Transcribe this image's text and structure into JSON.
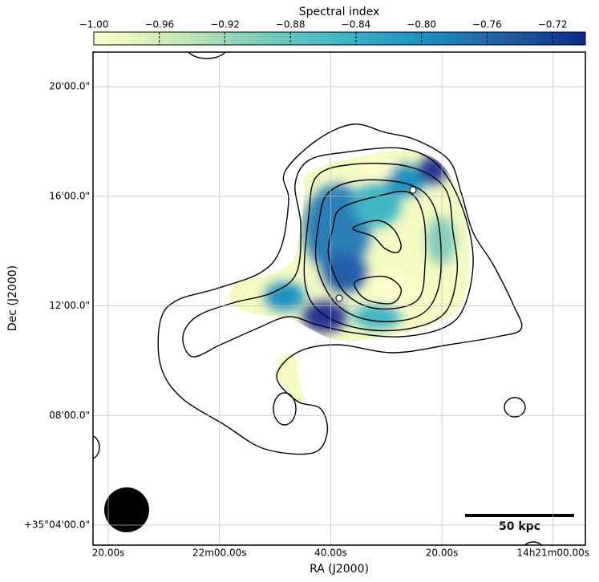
{
  "chart_data": {
    "type": "image",
    "colorbar": {
      "label": "Spectral index",
      "clim": [
        -1.0,
        -0.7
      ],
      "ticks": [
        {
          "value": -1.0,
          "label": "−1.00"
        },
        {
          "value": -0.96,
          "label": "−0.96"
        },
        {
          "value": -0.92,
          "label": "−0.92"
        },
        {
          "value": -0.88,
          "label": "−0.88"
        },
        {
          "value": -0.84,
          "label": "−0.84"
        },
        {
          "value": -0.8,
          "label": "−0.80"
        },
        {
          "value": -0.76,
          "label": "−0.76"
        },
        {
          "value": -0.72,
          "label": "−0.72"
        }
      ],
      "colormap": [
        "#ffffcc",
        "#c7e9b4",
        "#7fcdbb",
        "#41b6c4",
        "#1d91c0",
        "#225ea8",
        "#0c2c84"
      ]
    },
    "xlabel": "RA (J2000)",
    "ylabel": "Dec (J2000)",
    "xlim": [
      82.75,
      -5.8
    ],
    "xticks": [
      {
        "value": 80,
        "label": "20.00s"
      },
      {
        "value": 60,
        "label": "22m00.00s"
      },
      {
        "value": 40,
        "label": "40.00s"
      },
      {
        "value": 20,
        "label": "20.00s"
      },
      {
        "value": 0,
        "label": "14h21m00.00s"
      }
    ],
    "ylim": [
      3.27,
      21.26
    ],
    "yticks": [
      {
        "value": 4,
        "label": "+35°04'00.0\""
      },
      {
        "value": 8,
        "label": "08'00.0\""
      },
      {
        "value": 12,
        "label": "12'00.0\""
      },
      {
        "value": 16,
        "label": "16'00.0\""
      },
      {
        "value": 20,
        "label": "20'00.0\""
      }
    ],
    "grid": true,
    "scalebar_label": "50 kpc"
  }
}
